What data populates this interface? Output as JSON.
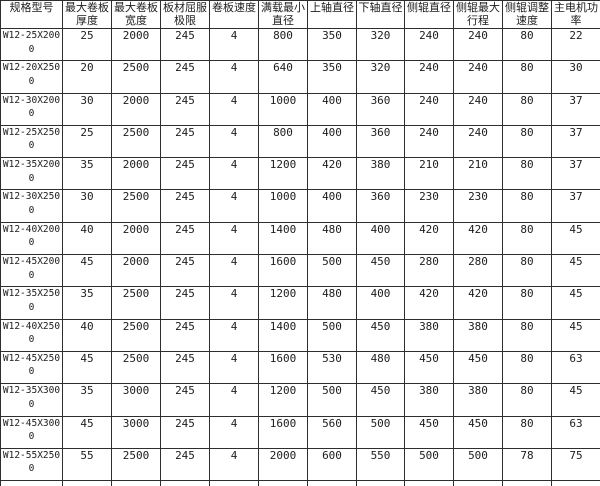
{
  "table": {
    "name": "plate-rolling-machine-specifications",
    "columns": [
      {
        "key": "model",
        "label": "规格型号",
        "label_lines": [
          "规格型号"
        ]
      },
      {
        "key": "max_plate_thickness",
        "label": "最大卷板厚度",
        "label_lines": [
          "最大卷板",
          "厚度"
        ]
      },
      {
        "key": "max_plate_width",
        "label": "最大卷板宽度",
        "label_lines": [
          "最大卷板",
          "宽度"
        ]
      },
      {
        "key": "plate_yield_limit",
        "label": "板材屈服极限",
        "label_lines": [
          "板材屈服",
          "极限"
        ]
      },
      {
        "key": "rolling_speed",
        "label": "卷板速度",
        "label_lines": [
          "卷板速度"
        ]
      },
      {
        "key": "full_load_min_diameter",
        "label": "满载最小直径",
        "label_lines": [
          "满载最小",
          "直径"
        ]
      },
      {
        "key": "upper_roll_diameter",
        "label": "上轴直径",
        "label_lines": [
          "上轴直径"
        ]
      },
      {
        "key": "lower_roll_diameter",
        "label": "下轴直径",
        "label_lines": [
          "下轴直径"
        ]
      },
      {
        "key": "side_roll_diameter",
        "label": "侧辊直径",
        "label_lines": [
          "侧辊直径"
        ]
      },
      {
        "key": "side_roll_max_stroke",
        "label": "侧辊最大行程",
        "label_lines": [
          "侧辊最大",
          "行程"
        ]
      },
      {
        "key": "side_roll_adjust_speed",
        "label": "侧辊调整速度",
        "label_lines": [
          "侧辊调整",
          "速度"
        ]
      },
      {
        "key": "main_motor_power",
        "label": "主电机功率",
        "label_lines": [
          "主电机功",
          "率"
        ]
      }
    ],
    "rows": [
      [
        "W12-25X2000",
        "25",
        "2000",
        "245",
        "4",
        "800",
        "350",
        "320",
        "240",
        "240",
        "80",
        "22"
      ],
      [
        "W12-20X2500",
        "20",
        "2500",
        "245",
        "4",
        "640",
        "350",
        "320",
        "240",
        "240",
        "80",
        "30"
      ],
      [
        "W12-30X2000",
        "30",
        "2000",
        "245",
        "4",
        "1000",
        "400",
        "360",
        "240",
        "240",
        "80",
        "37"
      ],
      [
        "W12-25X2500",
        "25",
        "2500",
        "245",
        "4",
        "800",
        "400",
        "360",
        "240",
        "240",
        "80",
        "37"
      ],
      [
        "W12-35X2000",
        "35",
        "2000",
        "245",
        "4",
        "1200",
        "420",
        "380",
        "210",
        "210",
        "80",
        "37"
      ],
      [
        "W12-30X2500",
        "30",
        "2500",
        "245",
        "4",
        "1000",
        "400",
        "360",
        "230",
        "230",
        "80",
        "37"
      ],
      [
        "W12-40X2000",
        "40",
        "2000",
        "245",
        "4",
        "1400",
        "480",
        "400",
        "420",
        "420",
        "80",
        "45"
      ],
      [
        "W12-45X2000",
        "45",
        "2000",
        "245",
        "4",
        "1600",
        "500",
        "450",
        "280",
        "280",
        "80",
        "45"
      ],
      [
        "W12-35X2500",
        "35",
        "2500",
        "245",
        "4",
        "1200",
        "480",
        "400",
        "420",
        "420",
        "80",
        "45"
      ],
      [
        "W12-40X2500",
        "40",
        "2500",
        "245",
        "4",
        "1400",
        "500",
        "450",
        "380",
        "380",
        "80",
        "45"
      ],
      [
        "W12-45X2500",
        "45",
        "2500",
        "245",
        "4",
        "1600",
        "530",
        "480",
        "450",
        "450",
        "80",
        "63"
      ],
      [
        "W12-35X3000",
        "35",
        "3000",
        "245",
        "4",
        "1200",
        "500",
        "450",
        "380",
        "380",
        "80",
        "45"
      ],
      [
        "W12-45X3000",
        "45",
        "3000",
        "245",
        "4",
        "1600",
        "560",
        "500",
        "450",
        "450",
        "80",
        "63"
      ],
      [
        "W12-55X2500",
        "55",
        "2500",
        "245",
        "4",
        "2000",
        "600",
        "550",
        "500",
        "500",
        "78",
        "75"
      ]
    ],
    "colors": {
      "border": "#2e2e2e",
      "text": "#1c1c1c",
      "background": "#ffffff"
    }
  }
}
